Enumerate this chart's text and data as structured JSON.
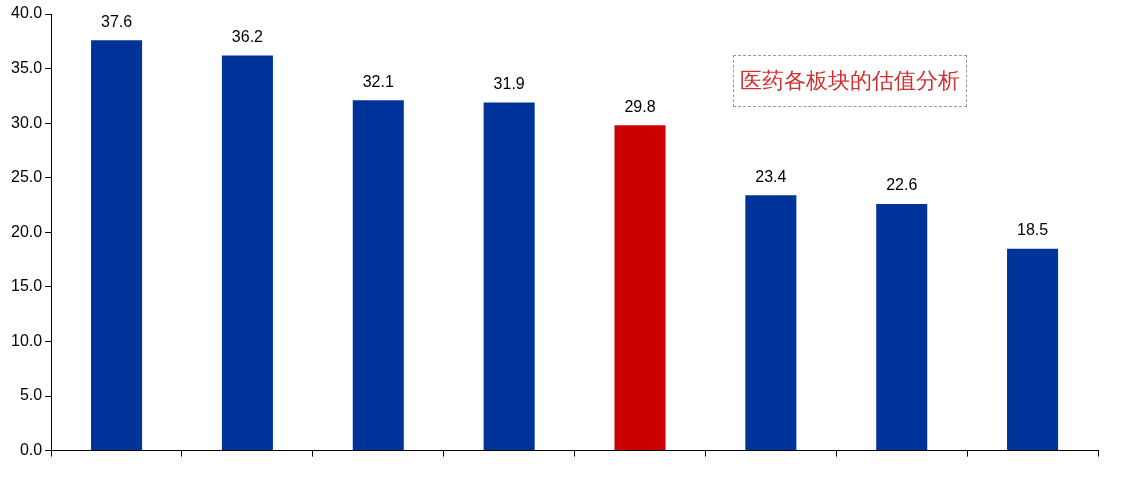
{
  "chart_data": {
    "type": "bar",
    "title": "医药各板块的估值分析",
    "categories": [
      null,
      null,
      null,
      null,
      null,
      null,
      null,
      null
    ],
    "values": [
      37.6,
      36.2,
      32.1,
      31.9,
      29.8,
      23.4,
      22.6,
      18.5
    ],
    "colors": [
      "#003399",
      "#003399",
      "#003399",
      "#003399",
      "#cc0000",
      "#003399",
      "#003399",
      "#003399"
    ],
    "ylim": [
      0,
      40
    ],
    "yticks": [
      {
        "value": 0,
        "label": "0.0"
      },
      {
        "value": 5,
        "label": "5.0"
      },
      {
        "value": 10,
        "label": "10.0"
      },
      {
        "value": 15,
        "label": "15.0"
      },
      {
        "value": 20,
        "label": "20.0"
      },
      {
        "value": 25,
        "label": "25.0"
      },
      {
        "value": 30,
        "label": "30.0"
      },
      {
        "value": 35,
        "label": "35.0"
      },
      {
        "value": 40,
        "label": "40.0"
      }
    ],
    "data_labels": true,
    "grid": false,
    "legend": false
  }
}
